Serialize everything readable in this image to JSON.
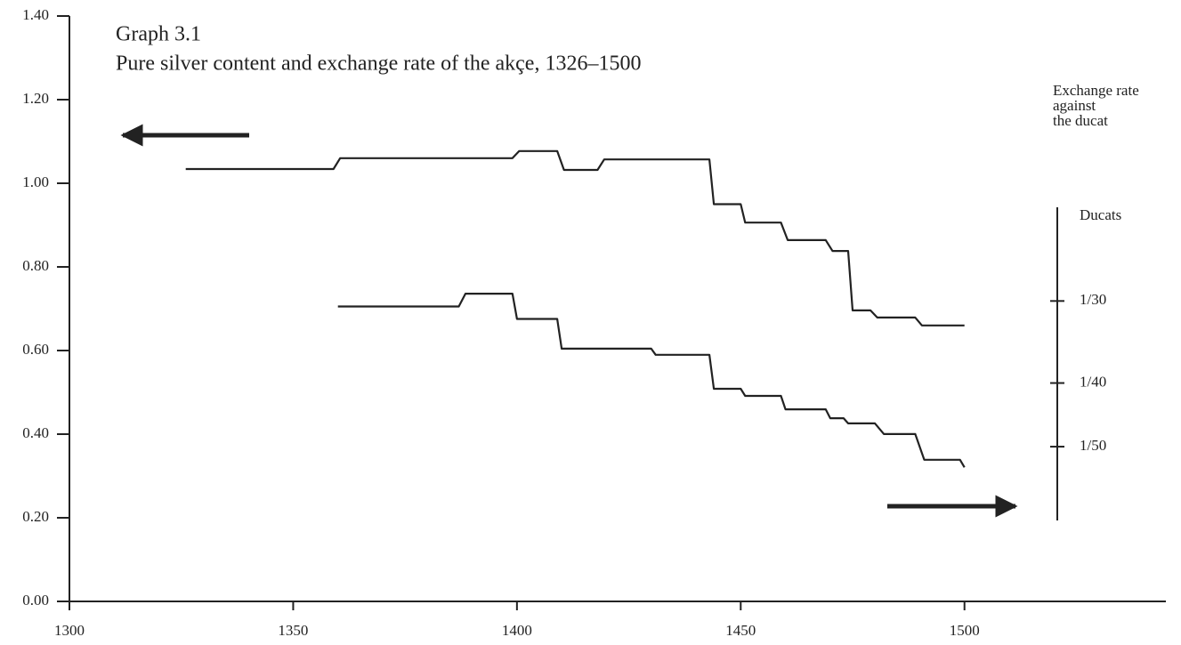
{
  "chart_data": {
    "type": "line",
    "title": "Graph 3.1",
    "subtitle": "Pure silver content and exchange rate of the akçe, 1326–1500",
    "y2label": [
      "Exchange rate",
      "against",
      "the ducat"
    ],
    "y2unit": "Ducats",
    "xlim": [
      1300,
      1545
    ],
    "xticks": [
      1300,
      1350,
      1400,
      1450,
      1500
    ],
    "ylim": [
      0,
      1.4
    ],
    "yticks": [
      {
        "value": 0,
        "label": "0.00"
      },
      {
        "value": 0.2,
        "label": "0.20"
      },
      {
        "value": 0.4,
        "label": "0.40"
      },
      {
        "value": 0.6,
        "label": "0.60"
      },
      {
        "value": 0.8,
        "label": "0.80"
      },
      {
        "value": 1,
        "label": "1.00"
      },
      {
        "value": 1.2,
        "label": "1.20"
      },
      {
        "value": 1.4,
        "label": "1.40"
      }
    ],
    "y2scale": "log",
    "y2lim": [
      0.01544,
      0.0463
    ],
    "y2ticks": [
      {
        "value": 0.033333,
        "label": "1/30"
      },
      {
        "value": 0.025,
        "label": "1/40"
      },
      {
        "value": 0.02,
        "label": "1/50"
      }
    ],
    "series": [
      {
        "color": "#222",
        "x": [
          1326,
          1359,
          1360.5,
          1399,
          1400.5,
          1409,
          1410.5,
          1418,
          1419.5,
          1443,
          1444,
          1450,
          1451,
          1459,
          1460.5,
          1469,
          1470.5,
          1474,
          1475,
          1479,
          1480.5,
          1489,
          1490.5,
          1500
        ],
        "values": [
          1.034,
          1.034,
          1.06,
          1.06,
          1.077,
          1.077,
          1.032,
          1.032,
          1.057,
          1.057,
          0.95,
          0.95,
          0.906,
          0.906,
          0.864,
          0.864,
          0.838,
          0.838,
          0.696,
          0.696,
          0.679,
          0.679,
          0.66,
          0.66
        ]
      },
      {
        "color": "#222",
        "axis": "y2",
        "x": [
          1360,
          1387,
          1388.5,
          1399,
          1400,
          1409,
          1410,
          1430,
          1431,
          1443,
          1444,
          1450,
          1451,
          1459,
          1460,
          1469,
          1470,
          1473,
          1474,
          1480,
          1482,
          1489,
          1491,
          1499,
          1500
        ],
        "values": [
          0.0327,
          0.0327,
          0.0342,
          0.0342,
          0.0313,
          0.0313,
          0.0282,
          0.0282,
          0.0276,
          0.0276,
          0.0245,
          0.0245,
          0.0239,
          0.0239,
          0.0228,
          0.0228,
          0.0221,
          0.0221,
          0.0217,
          0.0217,
          0.0209,
          0.0209,
          0.0191,
          0.0191,
          0.0186
        ]
      }
    ]
  }
}
